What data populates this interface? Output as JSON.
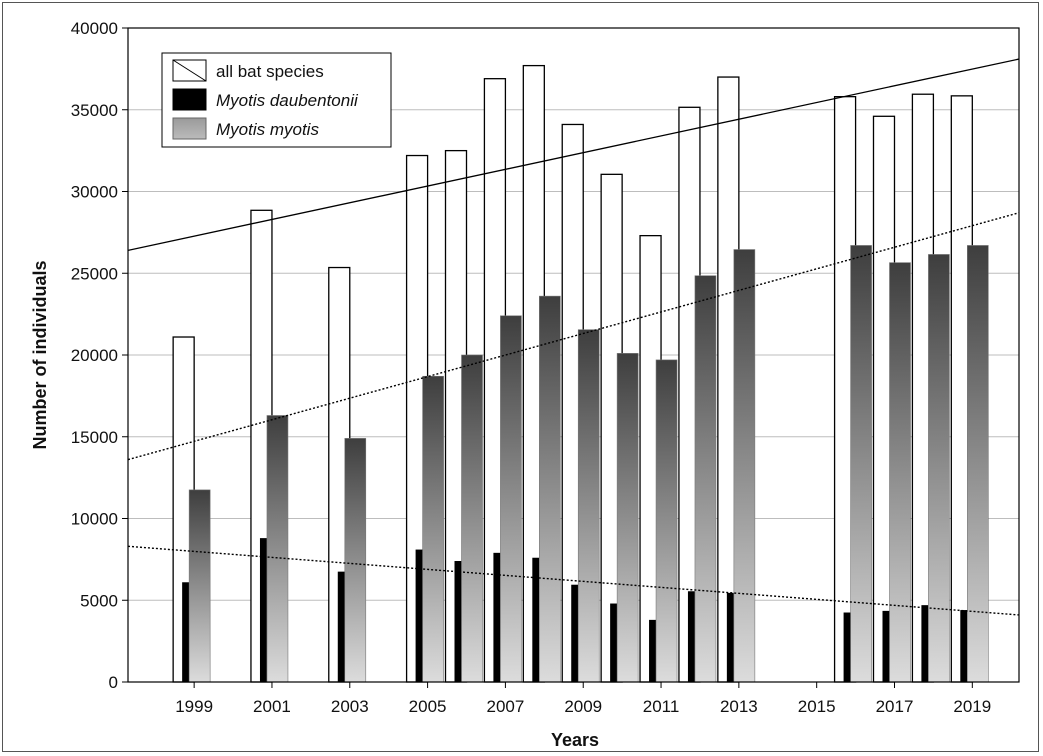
{
  "chart_data": {
    "type": "bar",
    "xlabel": "Years",
    "ylabel": "Number of individuals",
    "ylim": [
      0,
      40000
    ],
    "yticks": [
      0,
      5000,
      10000,
      15000,
      20000,
      25000,
      30000,
      35000,
      40000
    ],
    "xlim": [
      1997.3,
      2020.2
    ],
    "xtick_labels": [
      "1999",
      "2001",
      "2003",
      "2005",
      "2007",
      "2009",
      "2011",
      "2013",
      "2015",
      "2017",
      "2019"
    ],
    "years": [
      1999,
      2001,
      2003,
      2005,
      2006,
      2007,
      2008,
      2009,
      2010,
      2011,
      2012,
      2013,
      2016,
      2017,
      2018,
      2019
    ],
    "series": [
      {
        "name": "all bat species",
        "style": "outline",
        "values": [
          21100,
          28850,
          25350,
          32200,
          32500,
          36900,
          37700,
          34100,
          31050,
          27300,
          35150,
          37000,
          35800,
          34600,
          35950,
          35850
        ]
      },
      {
        "name": "Myotis daubentonii",
        "style": "solid-black",
        "italic": true,
        "values": [
          6100,
          8800,
          6750,
          8100,
          7400,
          7900,
          7600,
          5950,
          4800,
          3800,
          5550,
          5450,
          4250,
          4350,
          4700,
          4400
        ]
      },
      {
        "name": "Myotis myotis",
        "style": "gradient-gray",
        "italic": true,
        "values": [
          11750,
          16300,
          14900,
          18700,
          20000,
          22400,
          23600,
          21550,
          20100,
          19700,
          24850,
          26450,
          26700,
          25650,
          26150,
          26700
        ]
      }
    ],
    "trendlines": [
      {
        "series": "all bat species",
        "style": "solid",
        "x": [
          1997.3,
          2020.2
        ],
        "y": [
          26400,
          38100
        ]
      },
      {
        "series": "Myotis myotis",
        "style": "dotted",
        "x": [
          1997.3,
          2020.2
        ],
        "y": [
          13600,
          28700
        ]
      },
      {
        "series": "Myotis daubentonii",
        "style": "dotted",
        "x": [
          1997.3,
          2020.2
        ],
        "y": [
          8300,
          4100
        ]
      }
    ],
    "legend_position": "top-left",
    "grid": "horizontal",
    "colors": {
      "bar_outline": "#000000",
      "daubentonii": "#000000",
      "myotis_top": "#3e3e3e",
      "myotis_bottom": "#dcdcdc",
      "grid": "#bdbdbd"
    }
  }
}
